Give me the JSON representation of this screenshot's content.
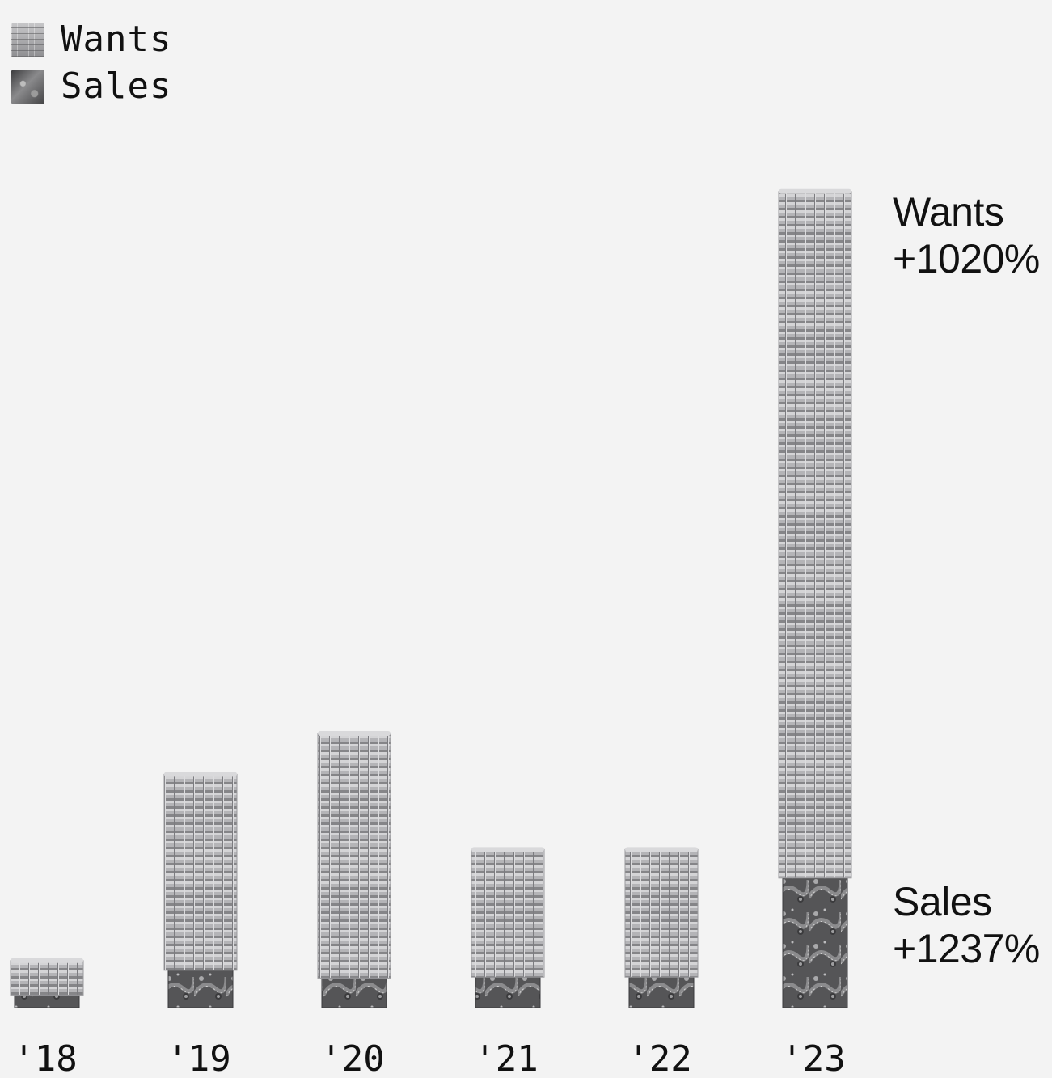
{
  "legend": {
    "items": [
      {
        "label": "Wants",
        "swatch": "wants-pattern"
      },
      {
        "label": "Sales",
        "swatch": "sales-pattern"
      }
    ]
  },
  "annotations": {
    "wants": {
      "label": "Wants",
      "value": "+1020%"
    },
    "sales": {
      "label": "Sales",
      "value": "+1237%"
    }
  },
  "chart_data": {
    "type": "bar",
    "stacked": true,
    "categories": [
      "'18",
      "'19",
      "'20",
      "'21",
      "'22",
      "'23"
    ],
    "series": [
      {
        "name": "Sales",
        "values": [
          2.6,
          7.7,
          6.1,
          6.3,
          6.3,
          26.7
        ],
        "color": "#4a4a4c"
      },
      {
        "name": "Wants",
        "values": [
          7.1,
          40.4,
          50.4,
          26.3,
          26.3,
          141.5
        ],
        "color": "#a9a9ac"
      }
    ],
    "title": "",
    "xlabel": "",
    "ylabel": "",
    "ylim": [
      0,
      170
    ],
    "grid": false,
    "legend_position": "top-left",
    "y_axis_visible": false
  }
}
